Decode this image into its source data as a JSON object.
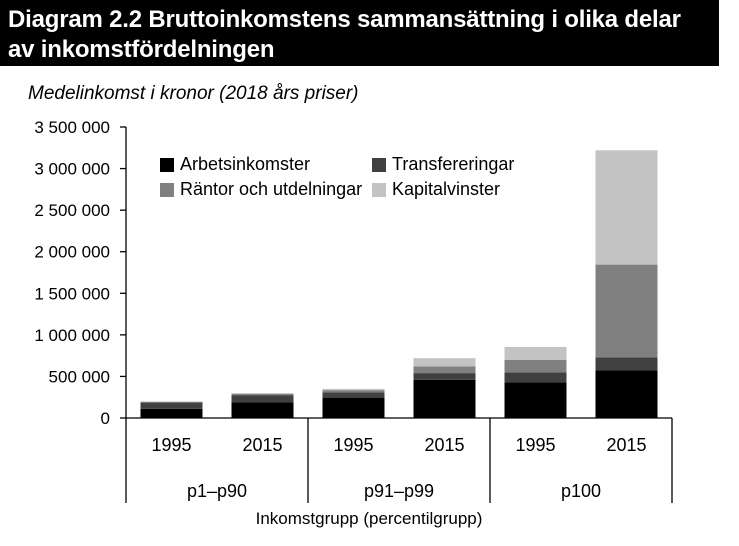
{
  "title": {
    "line1": "Diagram 2.2 Bruttoinkomstens sammansättning i olika delar",
    "line2": "av inkomstfördelningen"
  },
  "chart_data": {
    "type": "bar",
    "stacked": true,
    "subtitle": "Medelinkomst i kronor (2018 års priser)",
    "xlabel": "Inkomstgrupp (percentilgrupp)",
    "ylabel": "",
    "ylim": [
      0,
      3500000
    ],
    "yticks": [
      0,
      500000,
      1000000,
      1500000,
      2000000,
      2500000,
      3000000,
      3500000
    ],
    "ytick_labels": [
      "0",
      "500 000",
      "1 000 000",
      "1 500 000",
      "2 000 000",
      "2 500 000",
      "3 000 000",
      "3 500 000"
    ],
    "categories": [
      "1995",
      "2015",
      "1995",
      "2015",
      "1995",
      "2015"
    ],
    "groups": [
      {
        "label": "p1–p90",
        "span": 2
      },
      {
        "label": "p91–p99",
        "span": 2
      },
      {
        "label": "p100",
        "span": 2
      }
    ],
    "series": [
      {
        "name": "Arbetsinkomster",
        "color": "#000000",
        "values": [
          110000,
          190000,
          245000,
          460000,
          430000,
          575000
        ]
      },
      {
        "name": "Transfereringar",
        "color": "#404040",
        "values": [
          75000,
          85000,
          65000,
          80000,
          120000,
          155000
        ]
      },
      {
        "name": "Räntor och utdelningar",
        "color": "#808080",
        "values": [
          10000,
          15000,
          25000,
          80000,
          150000,
          1115000
        ]
      },
      {
        "name": "Kapitalvinster",
        "color": "#c3c3c3",
        "values": [
          5000,
          10000,
          15000,
          100000,
          155000,
          1375000
        ]
      }
    ],
    "legend_position": "top-left"
  }
}
